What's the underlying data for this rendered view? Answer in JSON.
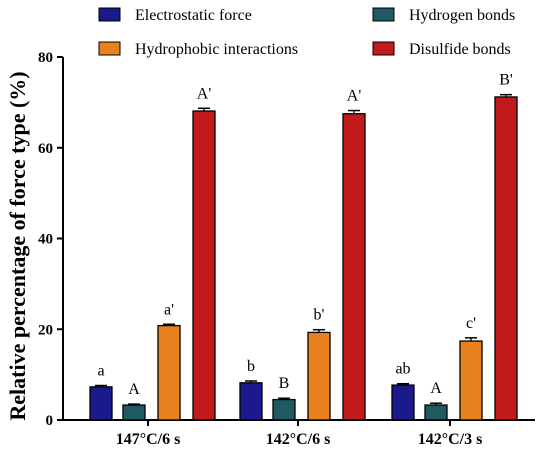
{
  "chart_data": {
    "type": "bar",
    "title": "",
    "xlabel": "",
    "ylabel": "Relative percentage of force type (%)",
    "ylim": [
      0,
      80
    ],
    "yticks": [
      0,
      20,
      40,
      60,
      80
    ],
    "categories": [
      "147°C/6 s",
      "142°C/6 s",
      "142°C/3 s"
    ],
    "legend_position": "top",
    "series": [
      {
        "name": "Electrostatic  force",
        "color": "#1a1a8c",
        "values": [
          7.3,
          8.2,
          7.7
        ],
        "errors": [
          0.3,
          0.4,
          0.3
        ],
        "labels": [
          "a",
          "b",
          "ab"
        ]
      },
      {
        "name": "Hydrogen bonds",
        "color": "#1f5a63",
        "values": [
          3.3,
          4.5,
          3.3
        ],
        "errors": [
          0.2,
          0.3,
          0.4
        ],
        "labels": [
          "A",
          "B",
          "A"
        ]
      },
      {
        "name": "Hydrophobic interactions",
        "color": "#e8821e",
        "values": [
          20.8,
          19.3,
          17.4
        ],
        "errors": [
          0.3,
          0.6,
          0.7
        ],
        "labels": [
          "a'",
          "b'",
          "c'"
        ]
      },
      {
        "name": "Disulfide bonds",
        "color": "#c01a1a",
        "values": [
          68.1,
          67.5,
          71.2
        ],
        "errors": [
          0.6,
          0.7,
          0.5
        ],
        "labels": [
          "A'",
          "A'",
          "B'"
        ]
      }
    ]
  }
}
